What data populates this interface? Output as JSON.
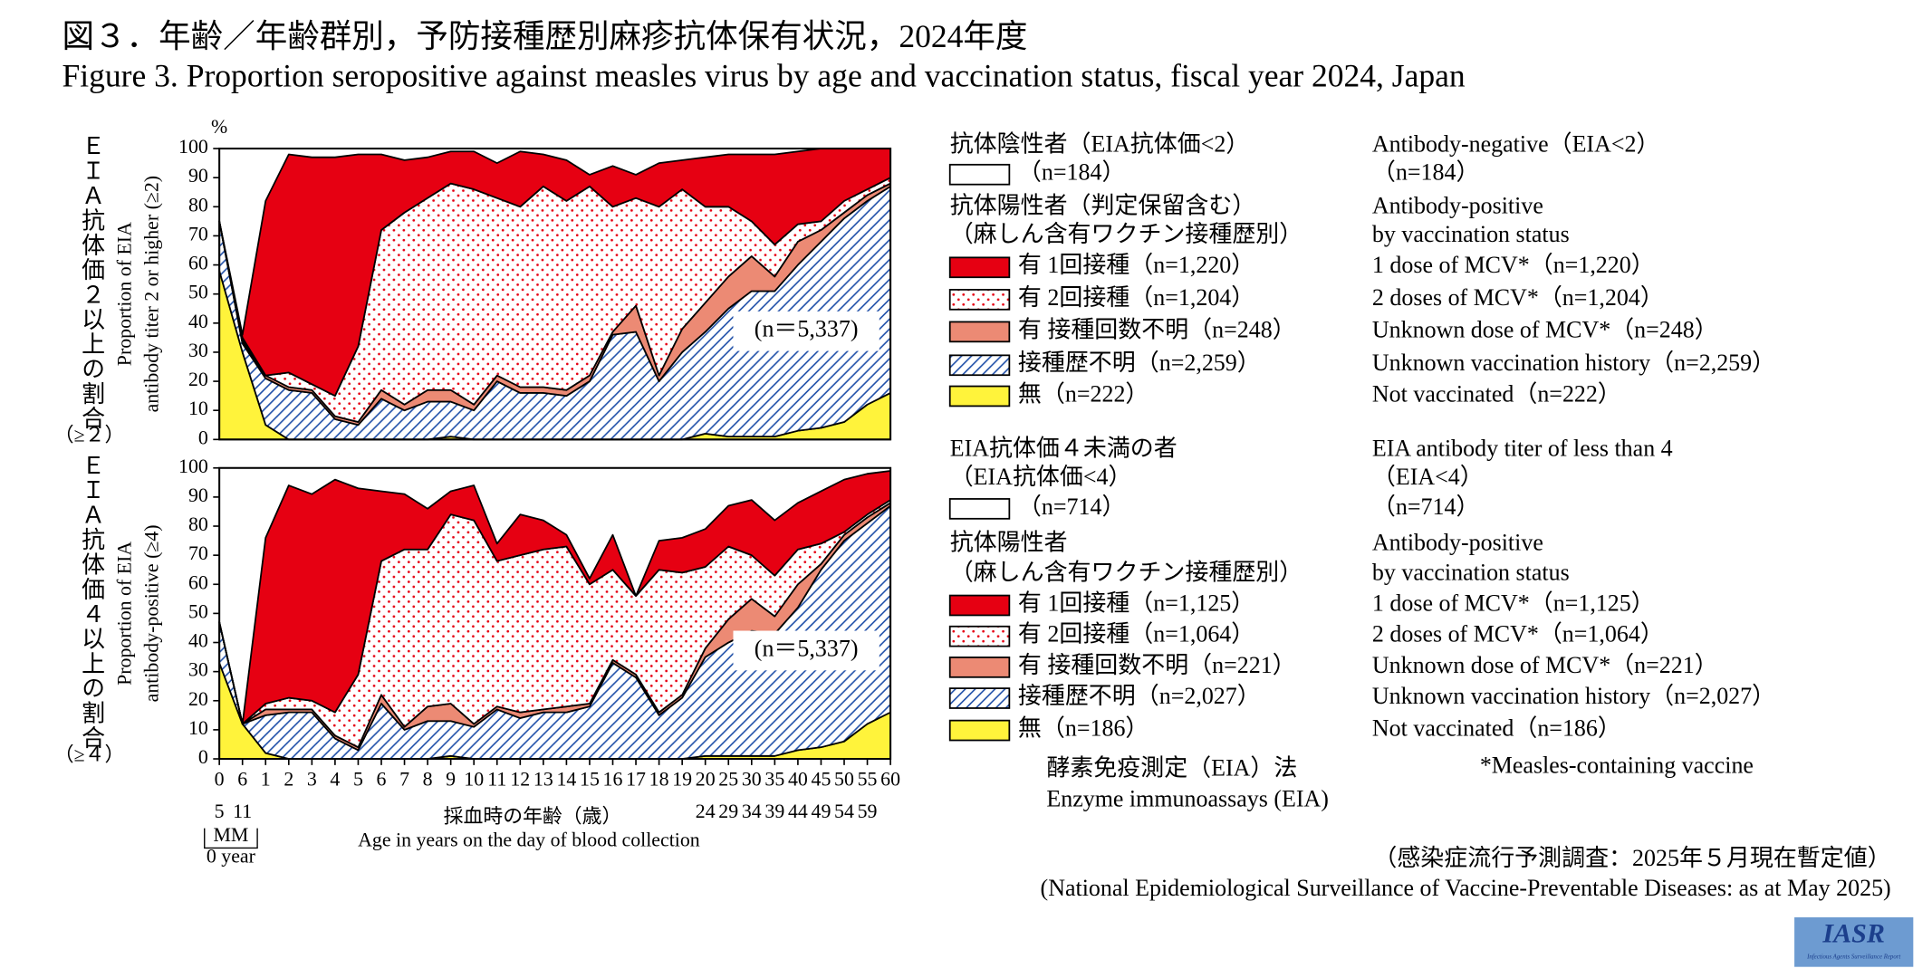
{
  "title": "図３．年齢／年齢群別，予防接種歴別麻疹抗体保有状況，2024年度",
  "subtitle": "Figure 3. Proportion seropositive against measles virus by age and vaccination status, fiscal year 2024, Japan",
  "x_axis": {
    "categories": [
      "0",
      "6",
      "1",
      "2",
      "3",
      "4",
      "5",
      "6",
      "7",
      "8",
      "9",
      "10",
      "11",
      "12",
      "13",
      "14",
      "15",
      "16",
      "17",
      "18",
      "19",
      "20",
      "25",
      "30",
      "35",
      "40",
      "45",
      "50",
      "55",
      "60"
    ],
    "sublabels": [
      "5",
      "11",
      null,
      null,
      null,
      null,
      null,
      null,
      null,
      null,
      null,
      null,
      null,
      null,
      null,
      null,
      null,
      null,
      null,
      null,
      null,
      "24",
      "29",
      "34",
      "39",
      "44",
      "49",
      "54",
      "59",
      null
    ],
    "month_label": "MM",
    "year_label": "0 year",
    "label_ja": "採血時の年齢（歳）",
    "label_en": "Age in years on the day of blood collection"
  },
  "chart_data": [
    {
      "type": "stacked_area",
      "ylabel_ja": "ＥＩＡ抗体価２以上の割合",
      "ylabel_ja_note": "（≥２）",
      "ylabel_en": [
        "Proportion of EIA",
        "antibody titer 2 or higher (≥2)"
      ],
      "y_unit": "%",
      "annotation": "(n＝5,337)",
      "ylim": [
        0,
        100
      ],
      "yticks": [
        0,
        10,
        20,
        30,
        40,
        50,
        60,
        70,
        80,
        90,
        100
      ],
      "legend": {
        "negative_ja": "抗体陰性者（EIA抗体価<2）",
        "negative_en": "Antibody-negative（EIA<2）",
        "negative_n": "（n=184）",
        "negative_n_en": "（n=184）",
        "positive_ja": [
          "抗体陽性者（判定保留含む）",
          "（麻しん含有ワクチン接種歴別）"
        ],
        "positive_en": [
          "Antibody-positive",
          "by vaccination status"
        ]
      },
      "series": [
        {
          "name": "無（n=222）",
          "name_en": "Not vaccinated（n=222）",
          "color": "#fff33b",
          "fill_style": "solid",
          "values": [
            58,
            30,
            5,
            0,
            0,
            0,
            0,
            0,
            0,
            0,
            1,
            0,
            0,
            0,
            0,
            0,
            0,
            0,
            0,
            0,
            0,
            2,
            1,
            1,
            1,
            3,
            4,
            6,
            12,
            16
          ]
        },
        {
          "name": "接種歴不明（n=2,259）",
          "name_en": "Unknown vaccination history（n=2,259）",
          "color": "#1f4fa8",
          "fill_style": "hatch",
          "values": [
            17,
            3,
            16,
            17,
            16,
            7,
            5,
            14,
            10,
            13,
            12,
            10,
            20,
            16,
            16,
            15,
            20,
            36,
            37,
            20,
            30,
            35,
            44,
            50,
            50,
            57,
            64,
            70,
            70,
            71
          ]
        },
        {
          "name": "有 接種回数不明（n=248）",
          "name_en": "Unknown dose of MCV*（n=248）",
          "color": "#ec8a74",
          "fill_style": "solid",
          "values": [
            0,
            1,
            1,
            1,
            1,
            1,
            1,
            3,
            2,
            4,
            4,
            2,
            2,
            2,
            2,
            2,
            2,
            1,
            9,
            2,
            8,
            10,
            11,
            12,
            5,
            8,
            4,
            2,
            2,
            1
          ]
        },
        {
          "name": "有 2回接種（n=1,204）",
          "name_en": "2 doses of MCV*（n=1,204）",
          "color": "#e60012",
          "fill_style": "dots",
          "values": [
            0,
            1,
            0,
            5,
            2,
            7,
            26,
            55,
            66,
            66,
            71,
            74,
            61,
            62,
            69,
            65,
            65,
            43,
            37,
            58,
            48,
            33,
            24,
            12,
            11,
            6,
            3,
            4,
            2,
            2
          ]
        },
        {
          "name": "有 1回接種（n=1,220）",
          "name_en": "1 dose of MCV*（n=1,220）",
          "color": "#e60012",
          "fill_style": "solid",
          "values": [
            0,
            1,
            60,
            75,
            78,
            82,
            66,
            26,
            18,
            14,
            11,
            13,
            12,
            19,
            11,
            14,
            4,
            14,
            8,
            15,
            10,
            17,
            18,
            23,
            31,
            25,
            25,
            18,
            14,
            10
          ]
        }
      ]
    },
    {
      "type": "stacked_area",
      "ylabel_ja": "ＥＩＡ抗体価４以上の割合",
      "ylabel_ja_note": "（≥４）",
      "ylabel_en": [
        "Proportion of EIA",
        "antibody-positive (≥4)"
      ],
      "annotation": "(n＝5,337)",
      "ylim": [
        0,
        100
      ],
      "yticks": [
        0,
        10,
        20,
        30,
        40,
        50,
        60,
        70,
        80,
        90,
        100
      ],
      "legend": {
        "negative_ja": "EIA抗体価４未満の者",
        "negative_ja2": "（EIA抗体価<4）",
        "negative_en": "EIA antibody titer of less than 4",
        "negative_en2": "（EIA<4）",
        "negative_n": "（n=714）",
        "negative_n_en": "（n=714）",
        "positive_ja": [
          "抗体陽性者",
          "（麻しん含有ワクチン接種歴別）"
        ],
        "positive_en": [
          "Antibody-positive",
          "by vaccination status"
        ]
      },
      "series": [
        {
          "name": "無（n=186）",
          "name_en": "Not vaccinated（n=186）",
          "color": "#fff33b",
          "fill_style": "solid",
          "values": [
            33,
            12,
            2,
            0,
            0,
            0,
            0,
            0,
            0,
            0,
            1,
            0,
            0,
            0,
            0,
            0,
            0,
            0,
            0,
            0,
            0,
            1,
            1,
            1,
            1,
            3,
            4,
            6,
            12,
            16
          ]
        },
        {
          "name": "接種歴不明（n=2,027）",
          "name_en": "Unknown vaccination history（n=2,027）",
          "color": "#1f4fa8",
          "fill_style": "hatch",
          "values": [
            14,
            0,
            13,
            16,
            16,
            7,
            3,
            19,
            10,
            13,
            12,
            11,
            17,
            14,
            16,
            16,
            18,
            33,
            28,
            15,
            21,
            34,
            39,
            43,
            42,
            49,
            61,
            69,
            69,
            71
          ]
        },
        {
          "name": "有 接種回数不明（n=221）",
          "name_en": "Unknown dose of MCV*（n=221）",
          "color": "#ec8a74",
          "fill_style": "solid",
          "values": [
            0,
            0,
            2,
            1,
            1,
            1,
            1,
            3,
            1,
            5,
            6,
            1,
            1,
            2,
            1,
            2,
            1,
            1,
            1,
            1,
            1,
            3,
            8,
            11,
            6,
            8,
            2,
            2,
            2,
            1
          ]
        },
        {
          "name": "有 2回接種（n=1,064）",
          "name_en": "2 doses of MCV*（n=1,064）",
          "color": "#e60012",
          "fill_style": "dots",
          "values": [
            0,
            0,
            2,
            4,
            3,
            8,
            25,
            46,
            61,
            54,
            65,
            70,
            50,
            54,
            55,
            55,
            41,
            31,
            27,
            49,
            42,
            28,
            25,
            15,
            14,
            12,
            7,
            1,
            1,
            1
          ]
        },
        {
          "name": "有 1回接種（n=1,125）",
          "name_en": "1 dose of MCV*（n=1,125）",
          "color": "#e60012",
          "fill_style": "solid",
          "values": [
            0,
            0,
            57,
            73,
            71,
            80,
            64,
            24,
            19,
            14,
            8,
            12,
            6,
            14,
            10,
            4,
            2,
            12,
            0,
            10,
            12,
            13,
            14,
            19,
            19,
            16,
            18,
            18,
            14,
            10
          ]
        }
      ]
    }
  ],
  "method_ja": "酵素免疫測定（EIA）法",
  "method_en": "Enzyme immunoassays (EIA)",
  "footnote": "*Measles-containing vaccine",
  "source_ja": "（感染症流行予測調査：2025年５月現在暫定値）",
  "source_en": "(National Epidemiological Surveillance of Vaccine-Preventable Diseases: as at May 2025)",
  "logo": "IASR",
  "logo_sub": "Infectious Agents Surveillance Report"
}
